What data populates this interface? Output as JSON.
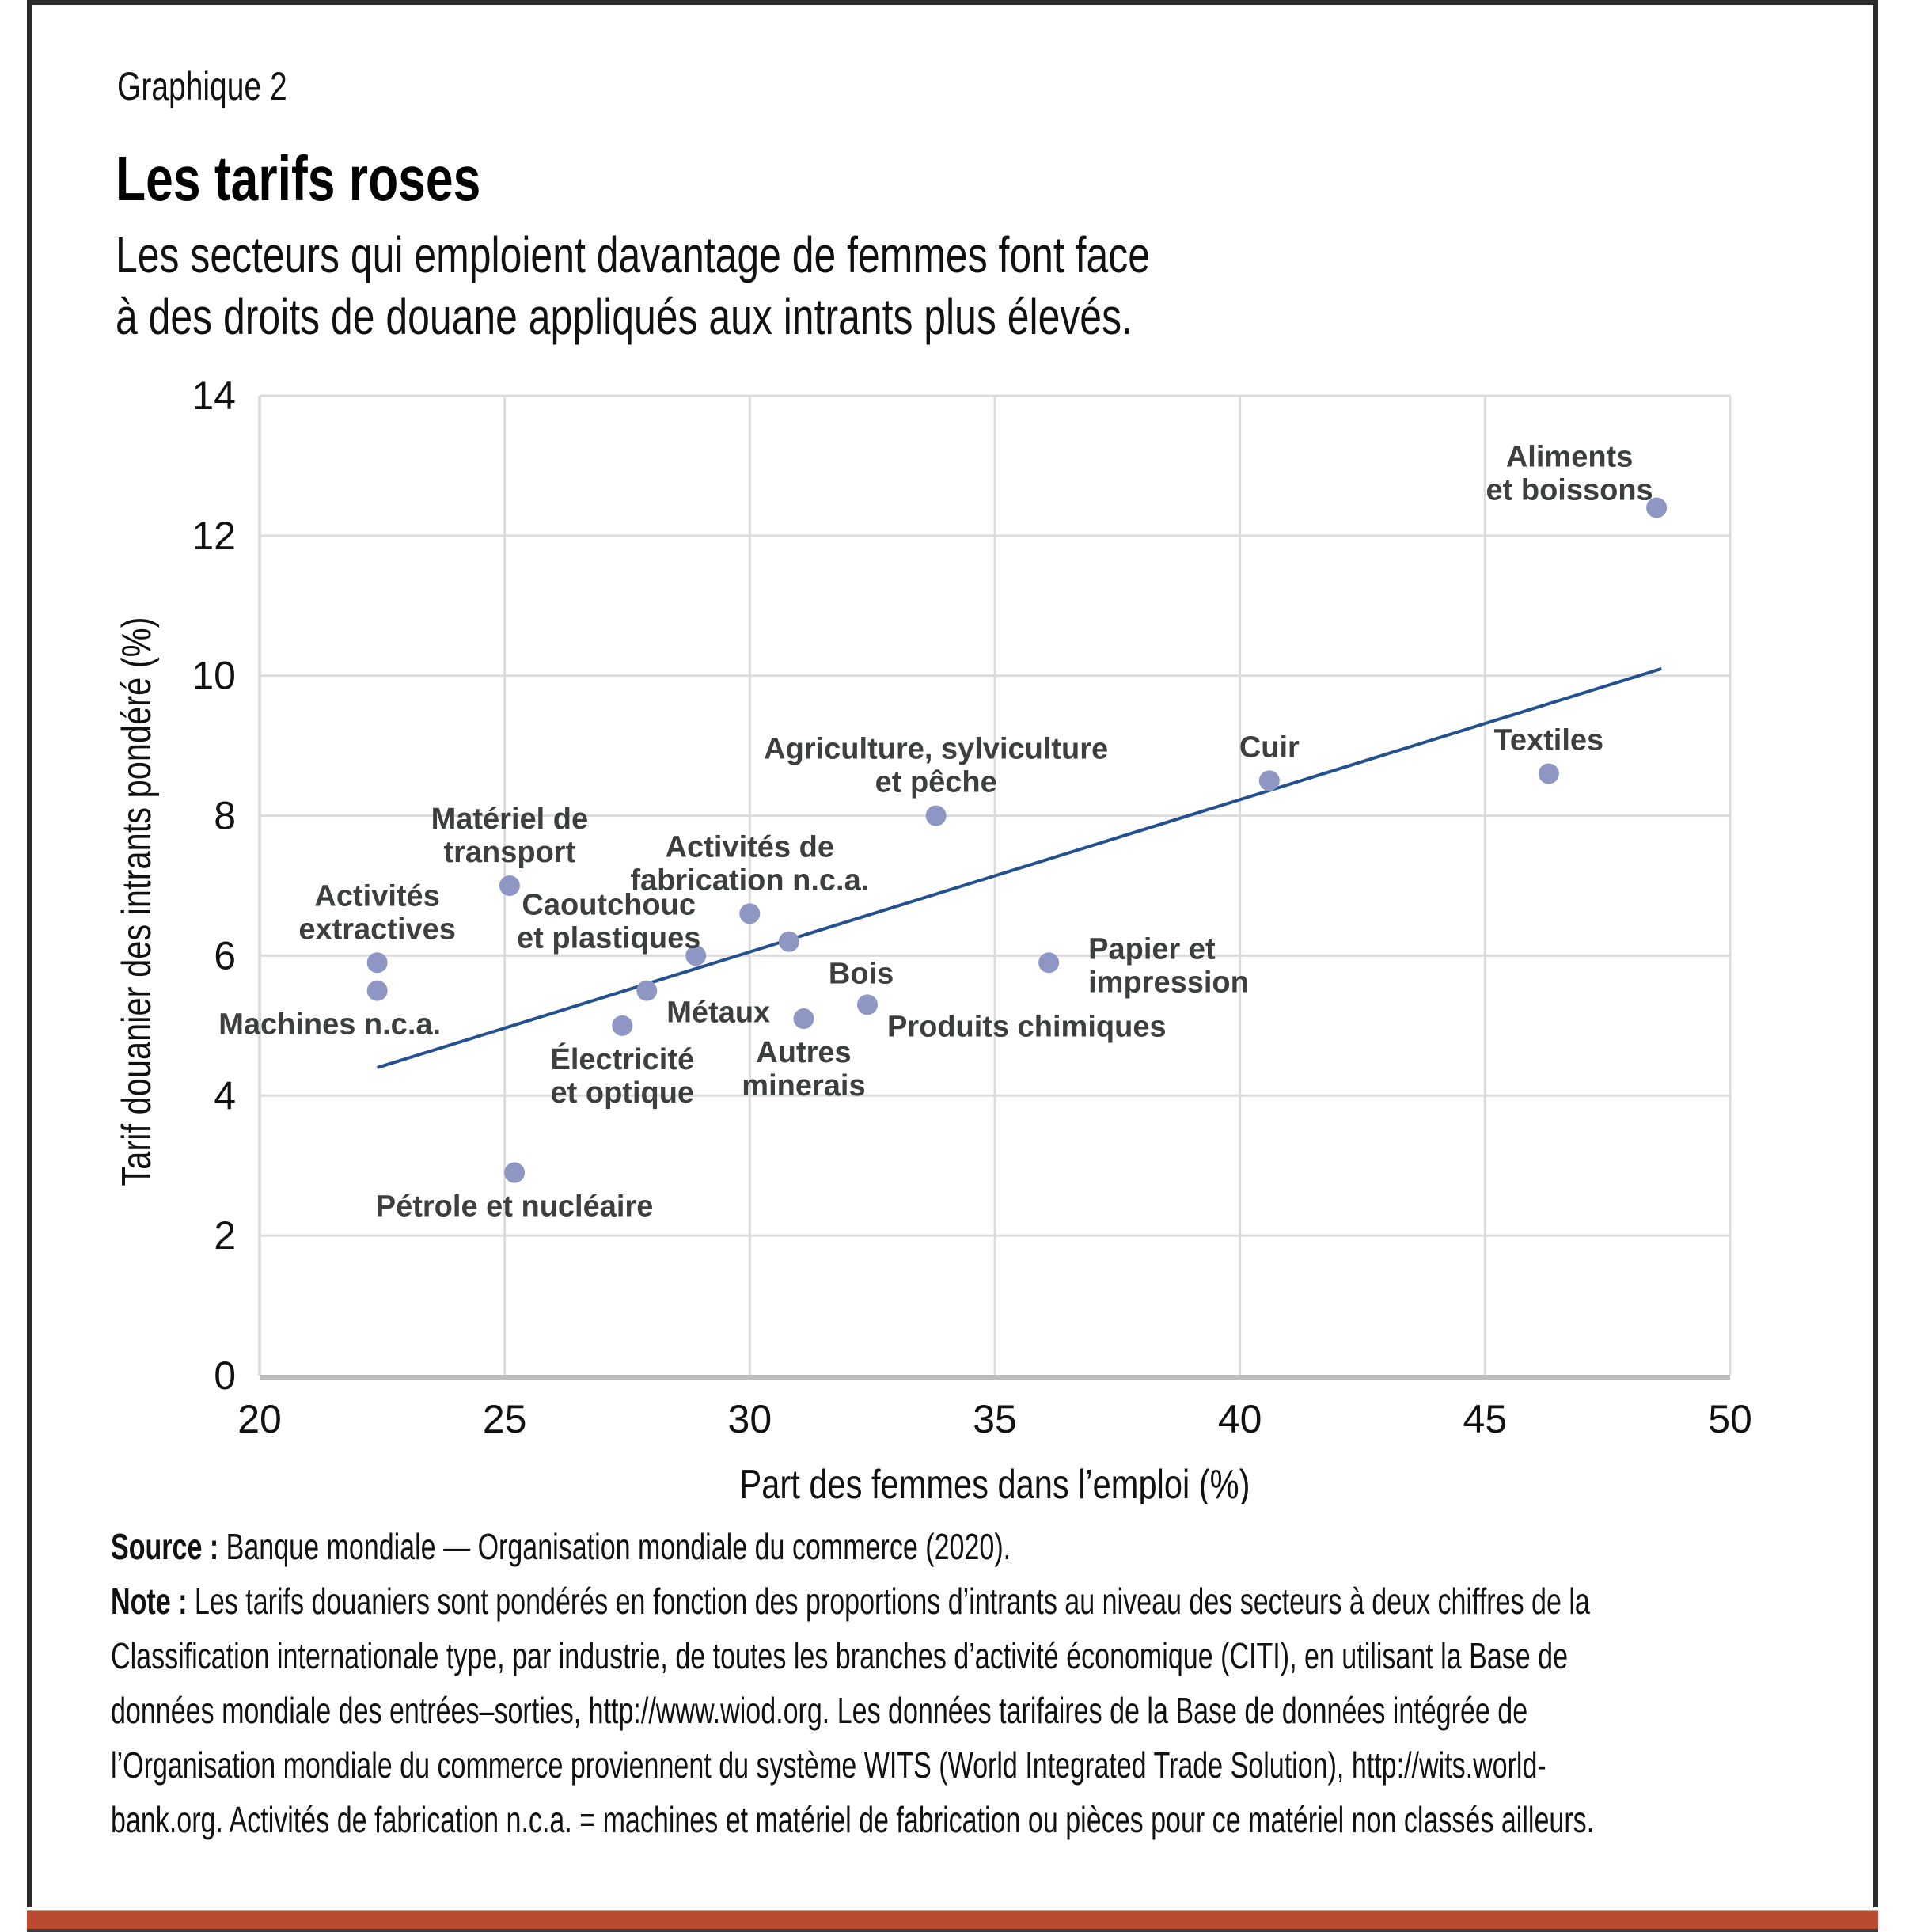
{
  "kicker": "Graphique 2",
  "title": "Les tarifs roses",
  "subtitle_lines": [
    "Les secteurs qui emploient davantage de femmes font face",
    "à des droits de douane appliqués aux intrants plus élevés."
  ],
  "footer": {
    "source_label": "Source :",
    "source_text": " Banque mondiale — Organisation mondiale du commerce (2020).",
    "note_label": "Note :",
    "note_lines": [
      " Les tarifs douaniers sont pondérés en fonction des proportions d’intrants au niveau des secteurs à deux chiffres de la",
      "Classification internationale type, par industrie, de toutes les branches d’activité économique (CITI), en utilisant la Base de",
      "données mondiale des entrées–sorties, http://www.wiod.org. Les données tarifaires de la Base de données intégrée de",
      "l’Organisation mondiale du commerce proviennent du système WITS (World Integrated Trade Solution), http://wits.world-",
      "bank.org. Activités de fabrication n.c.a. = machines et matériel de fabrication ou pièces pour ce matériel non classés ailleurs."
    ]
  },
  "colors": {
    "point": "#8e97c4",
    "trend": "#23508f",
    "grid": "#dcdcdc",
    "axis": "#bdbdbd",
    "label": "#3b3f3d",
    "bottom_bar": "#bb4a33"
  },
  "chart_data": {
    "type": "scatter",
    "title": "Les tarifs roses",
    "xlabel": "Part des femmes dans l’emploi (%)",
    "ylabel": "Tarif douanier des intrants pondéré (%)",
    "xlim": [
      20,
      50
    ],
    "ylim": [
      0,
      14
    ],
    "xticks": [
      20,
      25,
      30,
      35,
      40,
      45,
      50
    ],
    "yticks": [
      0,
      2,
      4,
      6,
      8,
      10,
      12,
      14
    ],
    "grid": true,
    "legend": "none",
    "points": [
      {
        "label": [
          "Aliments",
          "et boissons"
        ],
        "x": 48.5,
        "y": 12.4,
        "pos": "left-up"
      },
      {
        "label": [
          "Textiles"
        ],
        "x": 46.3,
        "y": 8.6,
        "pos": "above"
      },
      {
        "label": [
          "Cuir"
        ],
        "x": 40.6,
        "y": 8.5,
        "pos": "above"
      },
      {
        "label": [
          "Agriculture, sylviculture",
          "et pêche"
        ],
        "x": 33.8,
        "y": 8.0,
        "pos": "above"
      },
      {
        "label": [
          "Papier et",
          "impression"
        ],
        "x": 36.1,
        "y": 5.9,
        "pos": "right"
      },
      {
        "label": [
          "Produits chimiques"
        ],
        "x": 32.4,
        "y": 5.3,
        "pos": "right-low"
      },
      {
        "label": [
          "Autres",
          "minerais"
        ],
        "x": 31.1,
        "y": 5.1,
        "pos": "below"
      },
      {
        "label": [
          "Bois"
        ],
        "x": 30.8,
        "y": 6.2,
        "pos": "right-below"
      },
      {
        "label": [
          "Activités de",
          "fabrication n.c.a."
        ],
        "x": 30.0,
        "y": 6.6,
        "pos": "above"
      },
      {
        "label": [
          "Caoutchouc",
          "et plastiques"
        ],
        "x": 28.9,
        "y": 6.0,
        "pos": "left-up"
      },
      {
        "label": [
          "Métaux"
        ],
        "x": 27.9,
        "y": 5.5,
        "pos": "right-low"
      },
      {
        "label": [
          "Électricité",
          "et optique"
        ],
        "x": 27.4,
        "y": 5.0,
        "pos": "below"
      },
      {
        "label": [
          "Matériel de",
          "transport"
        ],
        "x": 25.1,
        "y": 7.0,
        "pos": "above"
      },
      {
        "label": [
          "Activités",
          "extractives"
        ],
        "x": 22.4,
        "y": 5.9,
        "pos": "above"
      },
      {
        "label": [
          "Machines n.c.a."
        ],
        "x": 22.4,
        "y": 5.5,
        "pos": "below-left"
      },
      {
        "label": [
          "Pétrole et nucléaire"
        ],
        "x": 25.2,
        "y": 2.9,
        "pos": "below"
      }
    ],
    "trendline": {
      "x": [
        22.4,
        48.6
      ],
      "y": [
        4.4,
        10.1
      ]
    }
  }
}
